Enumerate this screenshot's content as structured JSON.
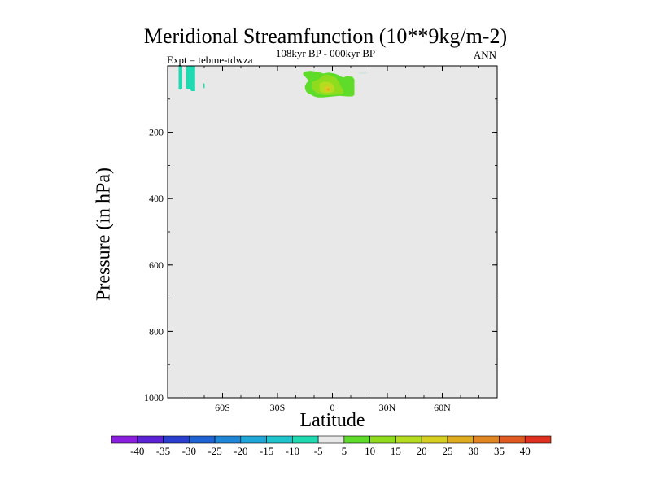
{
  "chart_data": {
    "type": "contour",
    "title": "Meridional Streamfunction (10**9kg/m-2)",
    "subtitle_center": "108kyr BP - 000kyr BP",
    "subtitle_left": "Expt = tebme-tdwza",
    "subtitle_right": "ANN",
    "xlabel": "Latitude",
    "ylabel": "Pressure (in hPa)",
    "xlim": [
      -90,
      90
    ],
    "ylim": [
      1000,
      0
    ],
    "xticks": [
      {
        "value": -60,
        "label": "60S"
      },
      {
        "value": -30,
        "label": "30S"
      },
      {
        "value": 0,
        "label": "0"
      },
      {
        "value": 30,
        "label": "30N"
      },
      {
        "value": 60,
        "label": "60N"
      }
    ],
    "yticks": [
      {
        "value": 200,
        "label": "200"
      },
      {
        "value": 400,
        "label": "400"
      },
      {
        "value": 600,
        "label": "600"
      },
      {
        "value": 800,
        "label": "800"
      },
      {
        "value": 1000,
        "label": "1000"
      }
    ],
    "colorbar": {
      "levels": [
        -40,
        -35,
        -30,
        -25,
        -20,
        -15,
        -10,
        -5,
        5,
        10,
        15,
        20,
        25,
        30,
        35,
        40
      ],
      "colors": [
        "#8a1fe0",
        "#5b22d6",
        "#2a3fd0",
        "#1f63d4",
        "#1f86d8",
        "#1fa7d8",
        "#1fc3cc",
        "#1fd9b0",
        "#e8e8e8",
        "#5fdc2a",
        "#8fdc1f",
        "#b5dc1f",
        "#d6cf1f",
        "#e0ac1f",
        "#e0851f",
        "#e05a1f",
        "#e0301f"
      ]
    },
    "regions": [
      {
        "level": "-10 to -5",
        "color": "#1fd9b0",
        "points": [
          [
            -84,
            0
          ],
          [
            -82,
            0
          ],
          [
            -82,
            68
          ],
          [
            -83,
            72
          ],
          [
            -84,
            70
          ]
        ]
      },
      {
        "level": "-10 to -5",
        "color": "#1fd9b0",
        "points": [
          [
            -80,
            0
          ],
          [
            -75,
            0
          ],
          [
            -75,
            76
          ],
          [
            -77,
            76
          ],
          [
            -78,
            70
          ],
          [
            -80,
            68
          ]
        ]
      },
      {
        "level": "-10 to -5",
        "color": "#1fd9b0",
        "points": [
          [
            -70.5,
            53
          ],
          [
            -69.8,
            53
          ],
          [
            -69.8,
            67
          ],
          [
            -70.5,
            67
          ]
        ]
      },
      {
        "level": "-10 to -5",
        "color": "#1fd9b0",
        "points": [
          [
            14.5,
            21.7
          ],
          [
            19,
            21.7
          ],
          [
            19,
            22.2
          ],
          [
            14.5,
            22.2
          ]
        ]
      },
      {
        "level": "5 to 10",
        "color": "#5fdc2a",
        "points": [
          [
            -16,
            21
          ],
          [
            -15,
            17
          ],
          [
            -12,
            15
          ],
          [
            -8,
            18
          ],
          [
            -5,
            23
          ],
          [
            -2,
            20
          ],
          [
            1,
            23
          ],
          [
            3,
            27
          ],
          [
            4,
            31
          ],
          [
            6,
            35
          ],
          [
            8,
            31
          ],
          [
            11,
            33
          ],
          [
            12,
            41
          ],
          [
            12,
            52
          ],
          [
            12,
            63
          ],
          [
            12,
            75
          ],
          [
            12,
            87
          ],
          [
            11,
            92
          ],
          [
            8,
            92
          ],
          [
            6,
            91
          ],
          [
            4,
            90
          ],
          [
            -1,
            93
          ],
          [
            -5,
            95
          ],
          [
            -8,
            95
          ],
          [
            -10,
            92
          ],
          [
            -12,
            86
          ],
          [
            -14,
            80
          ],
          [
            -15,
            70
          ],
          [
            -15,
            60
          ],
          [
            -14,
            50
          ],
          [
            -13,
            45
          ],
          [
            -14,
            38
          ],
          [
            -15,
            32
          ],
          [
            -16,
            27
          ]
        ]
      },
      {
        "level": "10 to 15",
        "color": "#8fdc1f",
        "points": [
          [
            -11,
            48
          ],
          [
            -8,
            42
          ],
          [
            -6,
            34
          ],
          [
            -4,
            25
          ],
          [
            -1,
            29
          ],
          [
            2,
            36
          ],
          [
            3,
            45
          ],
          [
            4,
            55
          ],
          [
            5,
            65
          ],
          [
            6,
            75
          ],
          [
            6,
            83
          ],
          [
            5,
            86
          ],
          [
            2,
            87
          ],
          [
            -1,
            88
          ],
          [
            -4,
            88
          ],
          [
            -6,
            86
          ],
          [
            -9,
            80
          ],
          [
            -11,
            70
          ],
          [
            -11,
            60
          ]
        ]
      },
      {
        "level": "15 to 20",
        "color": "#b5dc1f",
        "points": [
          [
            -7,
            52
          ],
          [
            -5,
            49
          ],
          [
            -3,
            48
          ],
          [
            -1,
            50
          ],
          [
            0,
            55
          ],
          [
            1,
            60
          ],
          [
            1,
            65
          ],
          [
            1,
            70
          ],
          [
            1,
            76
          ],
          [
            0,
            80
          ],
          [
            -2,
            82
          ],
          [
            -4,
            82
          ],
          [
            -6,
            80
          ],
          [
            -7,
            74
          ],
          [
            -7,
            65
          ],
          [
            -7,
            57
          ]
        ]
      },
      {
        "level": "20 to 25",
        "color": "#d6cf1f",
        "points": [
          [
            -4,
            62
          ],
          [
            -2.5,
            60
          ],
          [
            -1.5,
            62
          ],
          [
            -1,
            68
          ],
          [
            -1,
            75
          ],
          [
            -2,
            78
          ],
          [
            -3.5,
            78
          ],
          [
            -4.5,
            74
          ],
          [
            -4.5,
            68
          ]
        ]
      },
      {
        "level": "25 to 30",
        "color": "#e0ac1f",
        "points": [
          [
            -3,
            68
          ],
          [
            -2,
            67
          ],
          [
            -1.6,
            70
          ],
          [
            -1.8,
            75
          ],
          [
            -2.6,
            75
          ],
          [
            -3.1,
            72
          ]
        ]
      }
    ]
  }
}
